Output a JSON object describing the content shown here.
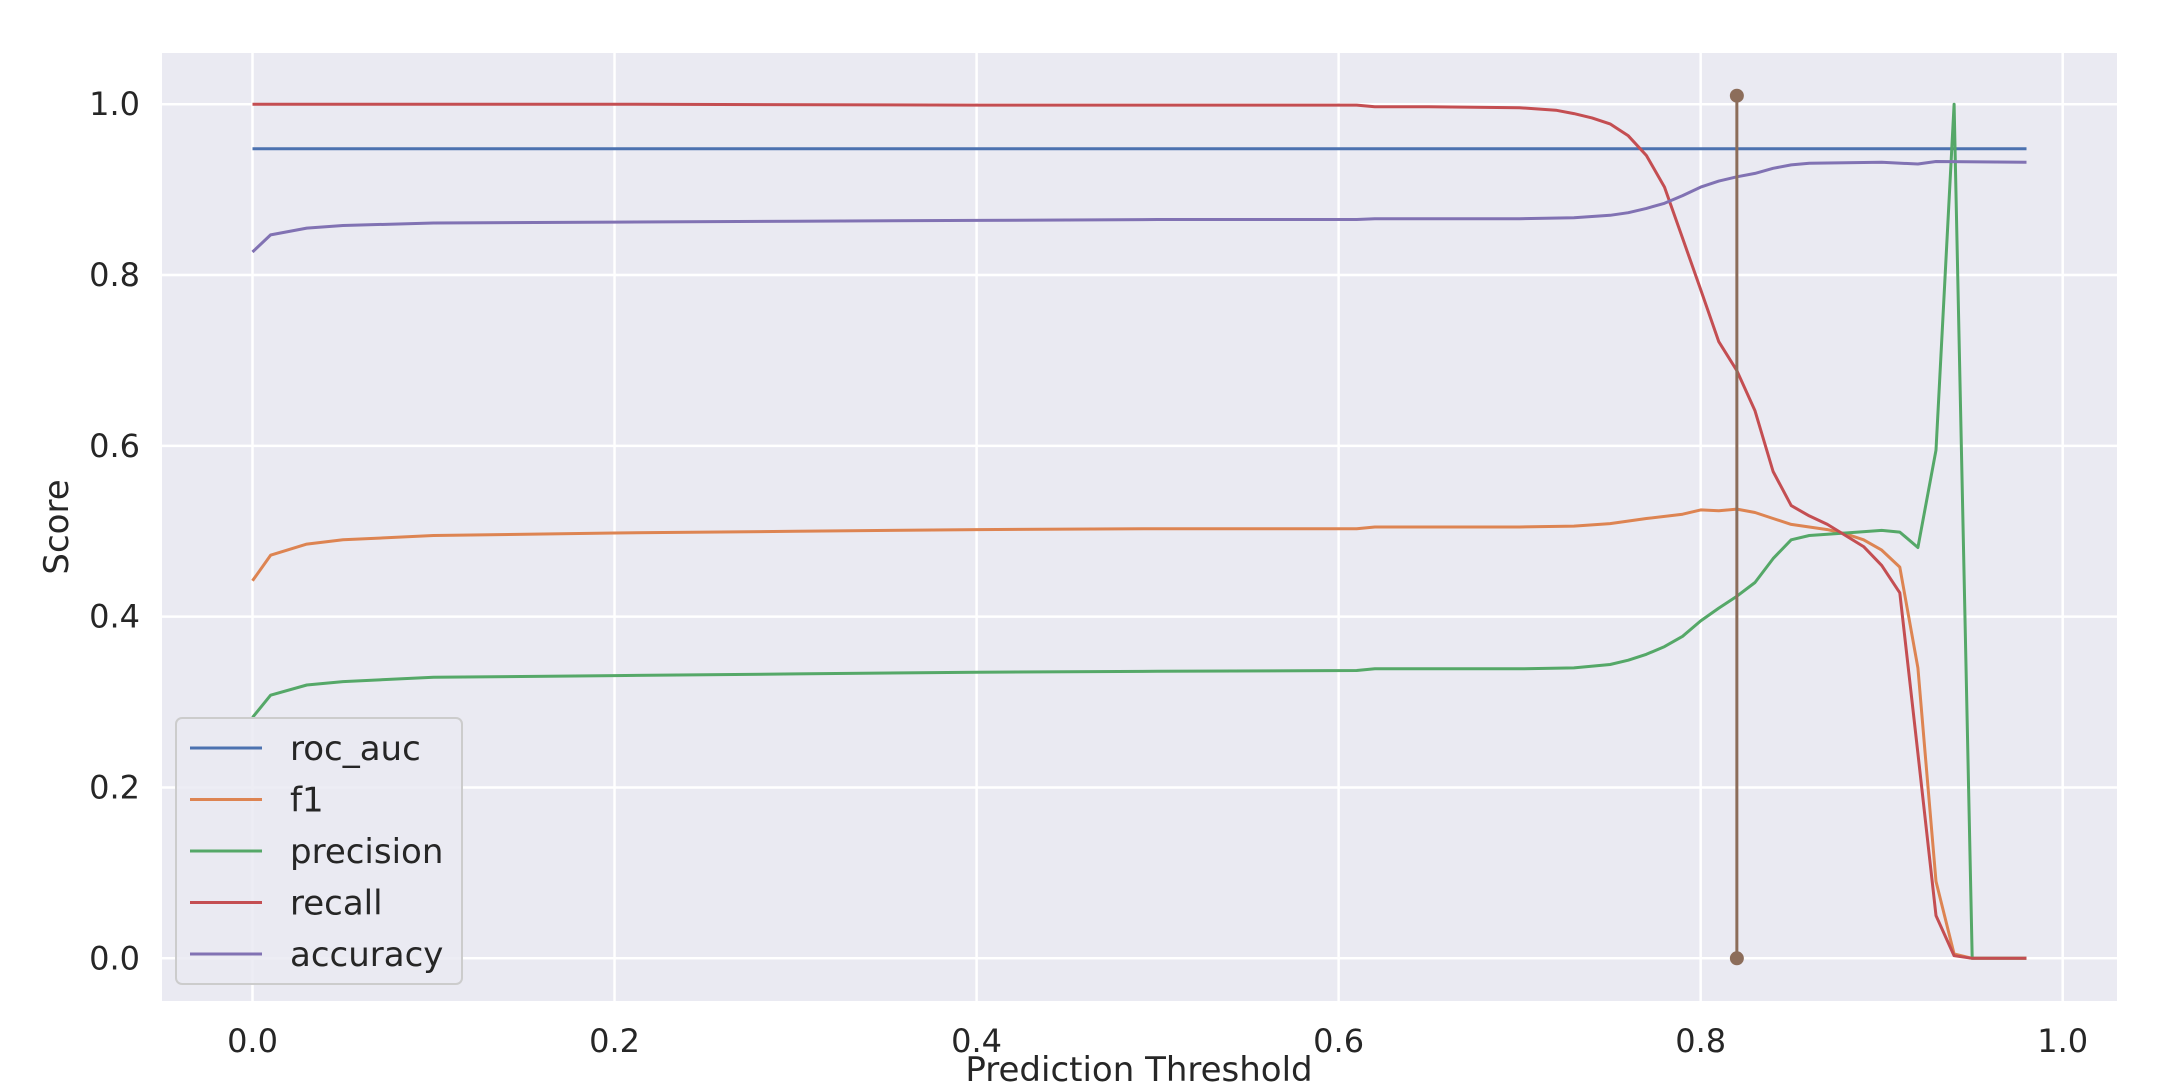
{
  "chart_data": {
    "type": "line",
    "title": "",
    "xlabel": "Prediction Threshold",
    "ylabel": "Score",
    "xlim": [
      -0.05,
      1.03
    ],
    "ylim": [
      -0.05,
      1.06
    ],
    "xticks": [
      0.0,
      0.2,
      0.4,
      0.6,
      0.8,
      1.0
    ],
    "xtick_labels": [
      "0.0",
      "0.2",
      "0.4",
      "0.6",
      "0.8",
      "1.0"
    ],
    "yticks": [
      0.0,
      0.2,
      0.4,
      0.6,
      0.8,
      1.0
    ],
    "ytick_labels": [
      "0.0",
      "0.2",
      "0.4",
      "0.6",
      "0.8",
      "1.0"
    ],
    "grid": true,
    "legend_position": "lower-left",
    "background": "#eaeaf2",
    "series": [
      {
        "name": "roc_auc",
        "color": "#4c72b0",
        "points": [
          [
            0.0,
            0.948
          ],
          [
            0.98,
            0.948
          ]
        ]
      },
      {
        "name": "f1",
        "color": "#dd8452",
        "points": [
          [
            0.0,
            0.442
          ],
          [
            0.01,
            0.472
          ],
          [
            0.03,
            0.485
          ],
          [
            0.05,
            0.49
          ],
          [
            0.1,
            0.495
          ],
          [
            0.2,
            0.498
          ],
          [
            0.3,
            0.5
          ],
          [
            0.4,
            0.502
          ],
          [
            0.5,
            0.503
          ],
          [
            0.61,
            0.503
          ],
          [
            0.62,
            0.505
          ],
          [
            0.7,
            0.505
          ],
          [
            0.73,
            0.506
          ],
          [
            0.75,
            0.509
          ],
          [
            0.77,
            0.515
          ],
          [
            0.79,
            0.52
          ],
          [
            0.8,
            0.525
          ],
          [
            0.81,
            0.524
          ],
          [
            0.82,
            0.526
          ],
          [
            0.83,
            0.522
          ],
          [
            0.84,
            0.515
          ],
          [
            0.85,
            0.508
          ],
          [
            0.87,
            0.502
          ],
          [
            0.88,
            0.497
          ],
          [
            0.89,
            0.49
          ],
          [
            0.9,
            0.478
          ],
          [
            0.91,
            0.458
          ],
          [
            0.92,
            0.34
          ],
          [
            0.93,
            0.09
          ],
          [
            0.94,
            0.005
          ],
          [
            0.95,
            0.0
          ],
          [
            0.98,
            0.0
          ]
        ]
      },
      {
        "name": "precision",
        "color": "#55a868",
        "points": [
          [
            0.0,
            0.282
          ],
          [
            0.01,
            0.308
          ],
          [
            0.03,
            0.32
          ],
          [
            0.05,
            0.324
          ],
          [
            0.1,
            0.329
          ],
          [
            0.2,
            0.331
          ],
          [
            0.3,
            0.333
          ],
          [
            0.4,
            0.335
          ],
          [
            0.5,
            0.336
          ],
          [
            0.61,
            0.337
          ],
          [
            0.62,
            0.339
          ],
          [
            0.7,
            0.339
          ],
          [
            0.73,
            0.34
          ],
          [
            0.75,
            0.344
          ],
          [
            0.76,
            0.349
          ],
          [
            0.77,
            0.356
          ],
          [
            0.78,
            0.365
          ],
          [
            0.79,
            0.377
          ],
          [
            0.8,
            0.395
          ],
          [
            0.81,
            0.41
          ],
          [
            0.82,
            0.424
          ],
          [
            0.83,
            0.44
          ],
          [
            0.84,
            0.468
          ],
          [
            0.85,
            0.49
          ],
          [
            0.86,
            0.495
          ],
          [
            0.88,
            0.498
          ],
          [
            0.9,
            0.501
          ],
          [
            0.91,
            0.499
          ],
          [
            0.92,
            0.481
          ],
          [
            0.93,
            0.595
          ],
          [
            0.94,
            1.0
          ],
          [
            0.95,
            0.0
          ],
          [
            0.98,
            0.0
          ]
        ]
      },
      {
        "name": "recall",
        "color": "#c44e52",
        "points": [
          [
            0.0,
            1.0
          ],
          [
            0.2,
            1.0
          ],
          [
            0.4,
            0.999
          ],
          [
            0.6,
            0.999
          ],
          [
            0.61,
            0.999
          ],
          [
            0.62,
            0.997
          ],
          [
            0.65,
            0.997
          ],
          [
            0.7,
            0.996
          ],
          [
            0.72,
            0.993
          ],
          [
            0.73,
            0.989
          ],
          [
            0.74,
            0.984
          ],
          [
            0.75,
            0.977
          ],
          [
            0.76,
            0.963
          ],
          [
            0.77,
            0.94
          ],
          [
            0.78,
            0.903
          ],
          [
            0.79,
            0.843
          ],
          [
            0.8,
            0.783
          ],
          [
            0.81,
            0.722
          ],
          [
            0.82,
            0.688
          ],
          [
            0.83,
            0.641
          ],
          [
            0.84,
            0.57
          ],
          [
            0.85,
            0.53
          ],
          [
            0.86,
            0.518
          ],
          [
            0.87,
            0.508
          ],
          [
            0.88,
            0.495
          ],
          [
            0.89,
            0.482
          ],
          [
            0.9,
            0.46
          ],
          [
            0.91,
            0.428
          ],
          [
            0.92,
            0.24
          ],
          [
            0.93,
            0.05
          ],
          [
            0.94,
            0.003
          ],
          [
            0.95,
            0.0
          ],
          [
            0.98,
            0.0
          ]
        ]
      },
      {
        "name": "accuracy",
        "color": "#8172b3",
        "points": [
          [
            0.0,
            0.827
          ],
          [
            0.01,
            0.847
          ],
          [
            0.03,
            0.855
          ],
          [
            0.05,
            0.858
          ],
          [
            0.1,
            0.861
          ],
          [
            0.2,
            0.862
          ],
          [
            0.3,
            0.863
          ],
          [
            0.4,
            0.864
          ],
          [
            0.5,
            0.865
          ],
          [
            0.61,
            0.865
          ],
          [
            0.62,
            0.866
          ],
          [
            0.7,
            0.866
          ],
          [
            0.73,
            0.867
          ],
          [
            0.75,
            0.87
          ],
          [
            0.76,
            0.873
          ],
          [
            0.77,
            0.878
          ],
          [
            0.78,
            0.884
          ],
          [
            0.79,
            0.893
          ],
          [
            0.8,
            0.903
          ],
          [
            0.81,
            0.91
          ],
          [
            0.82,
            0.915
          ],
          [
            0.83,
            0.919
          ],
          [
            0.84,
            0.925
          ],
          [
            0.85,
            0.929
          ],
          [
            0.86,
            0.931
          ],
          [
            0.9,
            0.932
          ],
          [
            0.92,
            0.93
          ],
          [
            0.93,
            0.933
          ],
          [
            0.98,
            0.932
          ]
        ]
      }
    ],
    "marker_line": {
      "color": "#8c6d5a",
      "x": 0.82,
      "y_range": [
        0.0,
        1.01
      ]
    }
  }
}
